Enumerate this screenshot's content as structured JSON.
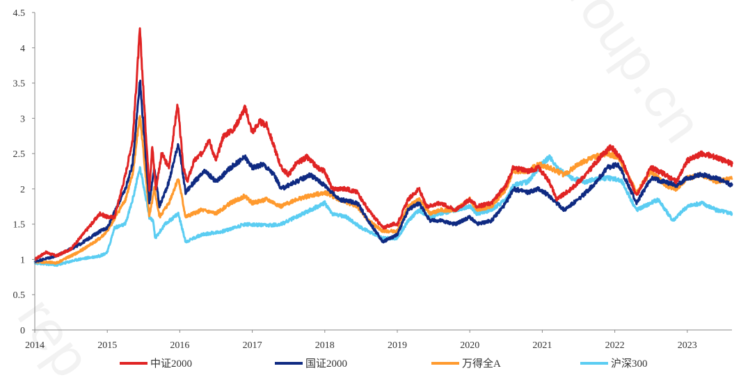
{
  "chart_data": {
    "type": "line",
    "title": "",
    "xlabel": "",
    "ylabel": "",
    "xlim": [
      2014.0,
      2023.62
    ],
    "ylim": [
      0,
      4.5
    ],
    "x_ticks": [
      "2014",
      "2015",
      "2016",
      "2017",
      "2018",
      "2019",
      "2020",
      "2021",
      "2022",
      "2023"
    ],
    "y_ticks": [
      "0",
      "0.5",
      "1",
      "1.5",
      "2",
      "2.5",
      "3",
      "3.5",
      "4",
      "4.5"
    ],
    "grid": false,
    "legend_position": "bottom",
    "series": [
      {
        "name": "中证2000",
        "color": "#e02424",
        "points": [
          [
            2014,
            1.0
          ],
          [
            2014.15,
            1.1
          ],
          [
            2014.3,
            1.05
          ],
          [
            2014.5,
            1.15
          ],
          [
            2014.7,
            1.4
          ],
          [
            2014.9,
            1.65
          ],
          [
            2015.0,
            1.6
          ],
          [
            2015.1,
            1.6
          ],
          [
            2015.25,
            2.2
          ],
          [
            2015.35,
            2.7
          ],
          [
            2015.45,
            4.25
          ],
          [
            2015.52,
            3.0
          ],
          [
            2015.58,
            2.0
          ],
          [
            2015.62,
            2.6
          ],
          [
            2015.67,
            2.0
          ],
          [
            2015.75,
            2.5
          ],
          [
            2015.85,
            2.3
          ],
          [
            2015.97,
            3.2
          ],
          [
            2016.05,
            2.3
          ],
          [
            2016.1,
            2.1
          ],
          [
            2016.2,
            2.4
          ],
          [
            2016.3,
            2.5
          ],
          [
            2016.4,
            2.7
          ],
          [
            2016.5,
            2.4
          ],
          [
            2016.6,
            2.75
          ],
          [
            2016.75,
            2.85
          ],
          [
            2016.9,
            3.15
          ],
          [
            2017.0,
            2.8
          ],
          [
            2017.1,
            2.95
          ],
          [
            2017.2,
            2.9
          ],
          [
            2017.3,
            2.6
          ],
          [
            2017.4,
            2.3
          ],
          [
            2017.5,
            2.2
          ],
          [
            2017.6,
            2.35
          ],
          [
            2017.75,
            2.45
          ],
          [
            2017.9,
            2.3
          ],
          [
            2018.0,
            2.25
          ],
          [
            2018.1,
            2.0
          ],
          [
            2018.3,
            2.0
          ],
          [
            2018.45,
            1.95
          ],
          [
            2018.6,
            1.7
          ],
          [
            2018.8,
            1.45
          ],
          [
            2018.95,
            1.5
          ],
          [
            2019.0,
            1.5
          ],
          [
            2019.15,
            1.85
          ],
          [
            2019.3,
            2.0
          ],
          [
            2019.4,
            1.75
          ],
          [
            2019.6,
            1.8
          ],
          [
            2019.8,
            1.7
          ],
          [
            2020.0,
            1.85
          ],
          [
            2020.1,
            1.75
          ],
          [
            2020.3,
            1.8
          ],
          [
            2020.5,
            2.05
          ],
          [
            2020.6,
            2.3
          ],
          [
            2020.8,
            2.25
          ],
          [
            2020.95,
            2.3
          ],
          [
            2021.1,
            2.1
          ],
          [
            2021.2,
            1.85
          ],
          [
            2021.4,
            2.0
          ],
          [
            2021.6,
            2.2
          ],
          [
            2021.8,
            2.45
          ],
          [
            2021.95,
            2.6
          ],
          [
            2022.1,
            2.4
          ],
          [
            2022.3,
            1.9
          ],
          [
            2022.5,
            2.3
          ],
          [
            2022.7,
            2.2
          ],
          [
            2022.85,
            2.1
          ],
          [
            2023.0,
            2.4
          ],
          [
            2023.2,
            2.5
          ],
          [
            2023.4,
            2.45
          ],
          [
            2023.62,
            2.35
          ]
        ]
      },
      {
        "name": "国证2000",
        "color": "#0f2a82",
        "points": [
          [
            2014,
            0.97
          ],
          [
            2014.3,
            1.05
          ],
          [
            2014.6,
            1.2
          ],
          [
            2014.9,
            1.4
          ],
          [
            2015.0,
            1.45
          ],
          [
            2015.25,
            2.0
          ],
          [
            2015.35,
            2.35
          ],
          [
            2015.45,
            3.55
          ],
          [
            2015.52,
            2.6
          ],
          [
            2015.58,
            1.8
          ],
          [
            2015.65,
            2.3
          ],
          [
            2015.72,
            1.75
          ],
          [
            2015.85,
            2.1
          ],
          [
            2015.98,
            2.65
          ],
          [
            2016.08,
            1.95
          ],
          [
            2016.2,
            2.1
          ],
          [
            2016.35,
            2.25
          ],
          [
            2016.5,
            2.1
          ],
          [
            2016.7,
            2.3
          ],
          [
            2016.9,
            2.45
          ],
          [
            2017.0,
            2.3
          ],
          [
            2017.15,
            2.35
          ],
          [
            2017.3,
            2.2
          ],
          [
            2017.4,
            2.0
          ],
          [
            2017.6,
            2.1
          ],
          [
            2017.8,
            2.2
          ],
          [
            2018.0,
            2.05
          ],
          [
            2018.2,
            1.85
          ],
          [
            2018.45,
            1.8
          ],
          [
            2018.6,
            1.55
          ],
          [
            2018.8,
            1.25
          ],
          [
            2019.0,
            1.35
          ],
          [
            2019.15,
            1.7
          ],
          [
            2019.3,
            1.8
          ],
          [
            2019.45,
            1.55
          ],
          [
            2019.6,
            1.55
          ],
          [
            2019.8,
            1.5
          ],
          [
            2020.0,
            1.6
          ],
          [
            2020.1,
            1.5
          ],
          [
            2020.3,
            1.55
          ],
          [
            2020.5,
            1.8
          ],
          [
            2020.6,
            2.0
          ],
          [
            2020.8,
            1.95
          ],
          [
            2020.95,
            2.0
          ],
          [
            2021.1,
            1.9
          ],
          [
            2021.3,
            1.7
          ],
          [
            2021.5,
            1.85
          ],
          [
            2021.7,
            2.05
          ],
          [
            2021.9,
            2.3
          ],
          [
            2022.05,
            2.35
          ],
          [
            2022.3,
            1.8
          ],
          [
            2022.5,
            2.15
          ],
          [
            2022.7,
            2.1
          ],
          [
            2022.85,
            2.05
          ],
          [
            2023.0,
            2.15
          ],
          [
            2023.2,
            2.2
          ],
          [
            2023.4,
            2.15
          ],
          [
            2023.62,
            2.05
          ]
        ]
      },
      {
        "name": "万得全A",
        "color": "#ff9a2e",
        "points": [
          [
            2014,
            0.97
          ],
          [
            2014.3,
            0.95
          ],
          [
            2014.6,
            1.1
          ],
          [
            2014.9,
            1.3
          ],
          [
            2015.0,
            1.4
          ],
          [
            2015.25,
            1.85
          ],
          [
            2015.35,
            2.2
          ],
          [
            2015.45,
            3.05
          ],
          [
            2015.52,
            2.3
          ],
          [
            2015.58,
            1.6
          ],
          [
            2015.65,
            2.0
          ],
          [
            2015.72,
            1.6
          ],
          [
            2015.85,
            1.8
          ],
          [
            2015.98,
            2.15
          ],
          [
            2016.08,
            1.6
          ],
          [
            2016.3,
            1.7
          ],
          [
            2016.5,
            1.65
          ],
          [
            2016.7,
            1.8
          ],
          [
            2016.9,
            1.9
          ],
          [
            2017.0,
            1.8
          ],
          [
            2017.2,
            1.85
          ],
          [
            2017.4,
            1.75
          ],
          [
            2017.6,
            1.85
          ],
          [
            2017.8,
            1.9
          ],
          [
            2018.0,
            1.95
          ],
          [
            2018.2,
            1.85
          ],
          [
            2018.45,
            1.75
          ],
          [
            2018.6,
            1.55
          ],
          [
            2018.8,
            1.4
          ],
          [
            2019.0,
            1.4
          ],
          [
            2019.15,
            1.75
          ],
          [
            2019.3,
            1.85
          ],
          [
            2019.45,
            1.65
          ],
          [
            2019.6,
            1.7
          ],
          [
            2019.8,
            1.7
          ],
          [
            2020.0,
            1.85
          ],
          [
            2020.1,
            1.7
          ],
          [
            2020.3,
            1.75
          ],
          [
            2020.5,
            2.0
          ],
          [
            2020.6,
            2.25
          ],
          [
            2020.8,
            2.25
          ],
          [
            2020.95,
            2.35
          ],
          [
            2021.1,
            2.3
          ],
          [
            2021.3,
            2.2
          ],
          [
            2021.5,
            2.35
          ],
          [
            2021.7,
            2.45
          ],
          [
            2021.9,
            2.5
          ],
          [
            2022.05,
            2.45
          ],
          [
            2022.3,
            1.95
          ],
          [
            2022.5,
            2.25
          ],
          [
            2022.7,
            2.05
          ],
          [
            2022.85,
            2.0
          ],
          [
            2023.0,
            2.15
          ],
          [
            2023.2,
            2.2
          ],
          [
            2023.4,
            2.1
          ],
          [
            2023.62,
            2.15
          ]
        ]
      },
      {
        "name": "沪深300",
        "color": "#5bcdf2",
        "points": [
          [
            2014,
            0.95
          ],
          [
            2014.3,
            0.92
          ],
          [
            2014.6,
            1.0
          ],
          [
            2014.9,
            1.05
          ],
          [
            2015.0,
            1.1
          ],
          [
            2015.1,
            1.45
          ],
          [
            2015.25,
            1.5
          ],
          [
            2015.35,
            1.85
          ],
          [
            2015.45,
            2.3
          ],
          [
            2015.52,
            1.95
          ],
          [
            2015.58,
            1.6
          ],
          [
            2015.63,
            1.55
          ],
          [
            2015.66,
            1.3
          ],
          [
            2015.8,
            1.5
          ],
          [
            2015.98,
            1.65
          ],
          [
            2016.08,
            1.25
          ],
          [
            2016.3,
            1.35
          ],
          [
            2016.6,
            1.4
          ],
          [
            2016.9,
            1.5
          ],
          [
            2017.2,
            1.48
          ],
          [
            2017.4,
            1.5
          ],
          [
            2017.6,
            1.6
          ],
          [
            2017.8,
            1.7
          ],
          [
            2018.0,
            1.8
          ],
          [
            2018.1,
            1.65
          ],
          [
            2018.3,
            1.6
          ],
          [
            2018.5,
            1.45
          ],
          [
            2018.8,
            1.3
          ],
          [
            2019.0,
            1.3
          ],
          [
            2019.15,
            1.55
          ],
          [
            2019.3,
            1.7
          ],
          [
            2019.45,
            1.6
          ],
          [
            2019.6,
            1.65
          ],
          [
            2019.8,
            1.7
          ],
          [
            2020.0,
            1.75
          ],
          [
            2020.1,
            1.65
          ],
          [
            2020.3,
            1.7
          ],
          [
            2020.5,
            1.85
          ],
          [
            2020.6,
            2.05
          ],
          [
            2020.8,
            2.1
          ],
          [
            2020.95,
            2.3
          ],
          [
            2021.1,
            2.45
          ],
          [
            2021.2,
            2.3
          ],
          [
            2021.4,
            2.15
          ],
          [
            2021.6,
            2.1
          ],
          [
            2021.8,
            2.15
          ],
          [
            2022.0,
            2.15
          ],
          [
            2022.1,
            2.1
          ],
          [
            2022.3,
            1.7
          ],
          [
            2022.5,
            1.8
          ],
          [
            2022.6,
            1.85
          ],
          [
            2022.8,
            1.55
          ],
          [
            2023.0,
            1.75
          ],
          [
            2023.2,
            1.8
          ],
          [
            2023.4,
            1.7
          ],
          [
            2023.62,
            1.65
          ]
        ]
      }
    ]
  }
}
